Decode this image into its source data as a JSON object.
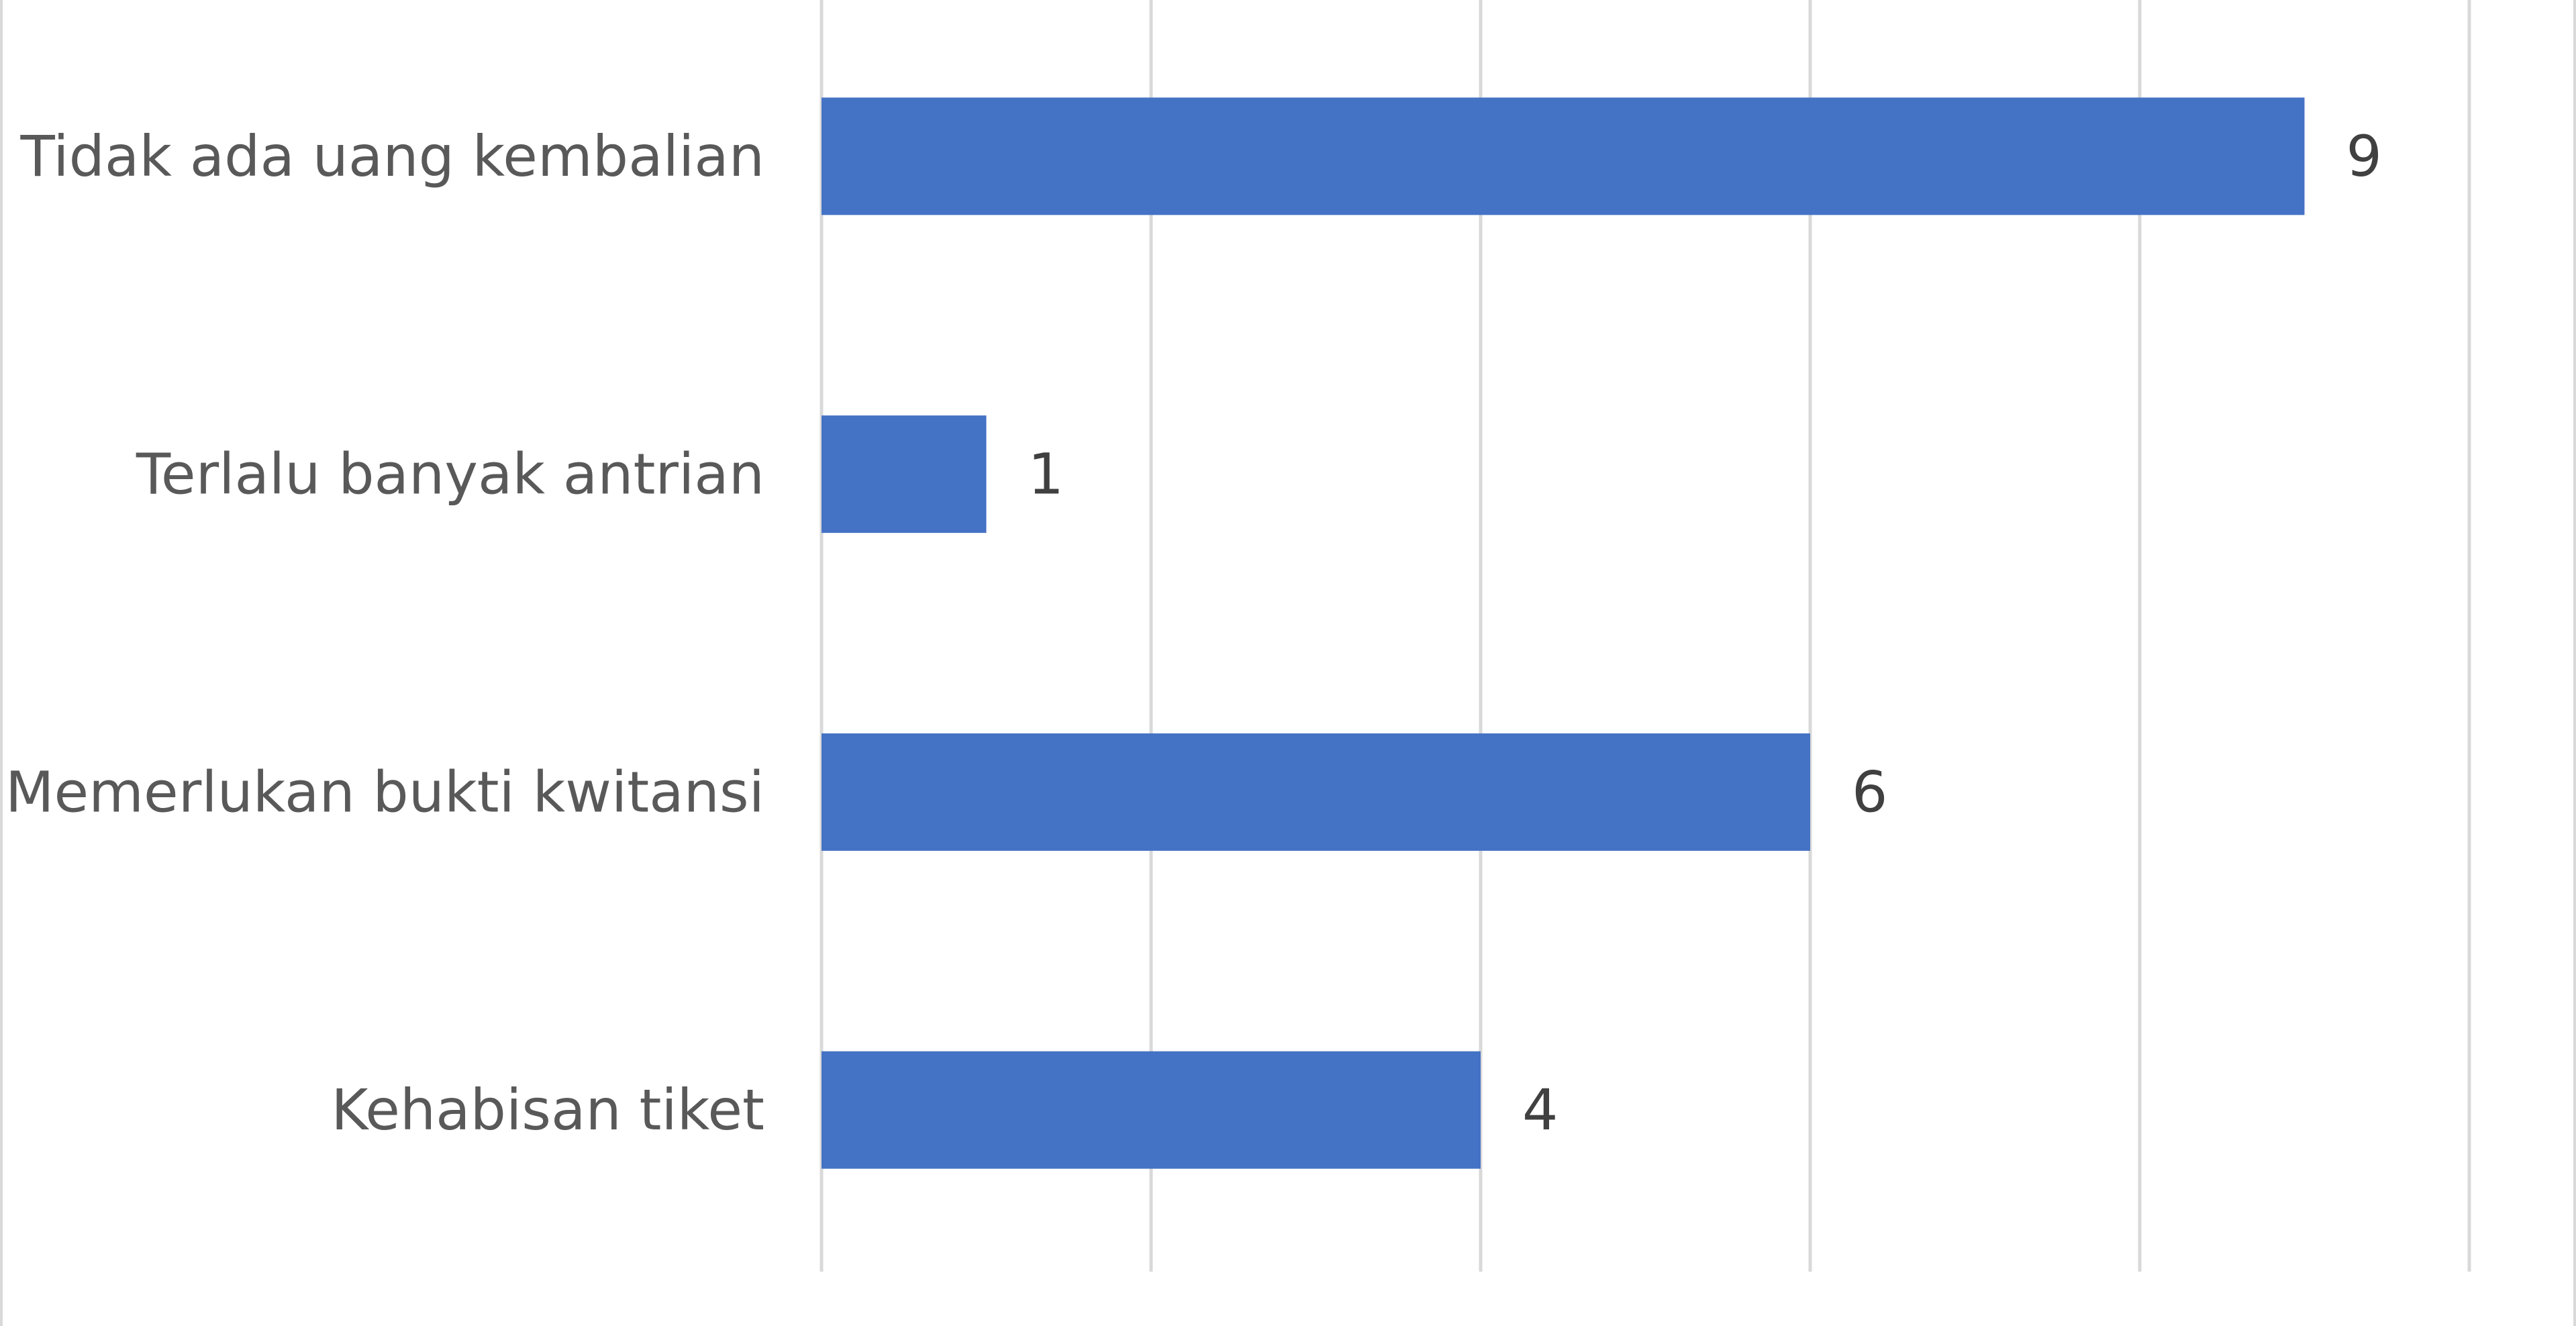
{
  "chart_data": {
    "type": "bar",
    "orientation": "horizontal",
    "categories": [
      "Tidak ada uang kembalian",
      "Terlalu banyak antrian",
      "Memerlukan bukti kwitansi",
      "Kehabisan tiket"
    ],
    "values": [
      9,
      1,
      6,
      4
    ],
    "value_labels": [
      "9",
      "1",
      "6",
      "4"
    ],
    "title": "",
    "xlabel": "",
    "ylabel": "",
    "xlim": [
      0,
      10
    ],
    "x_gridlines": [
      0,
      2,
      4,
      6,
      8,
      10
    ],
    "grid": true,
    "legend": "none",
    "bar_color": "#4472c4",
    "grid_color": "#d9d9d9"
  }
}
